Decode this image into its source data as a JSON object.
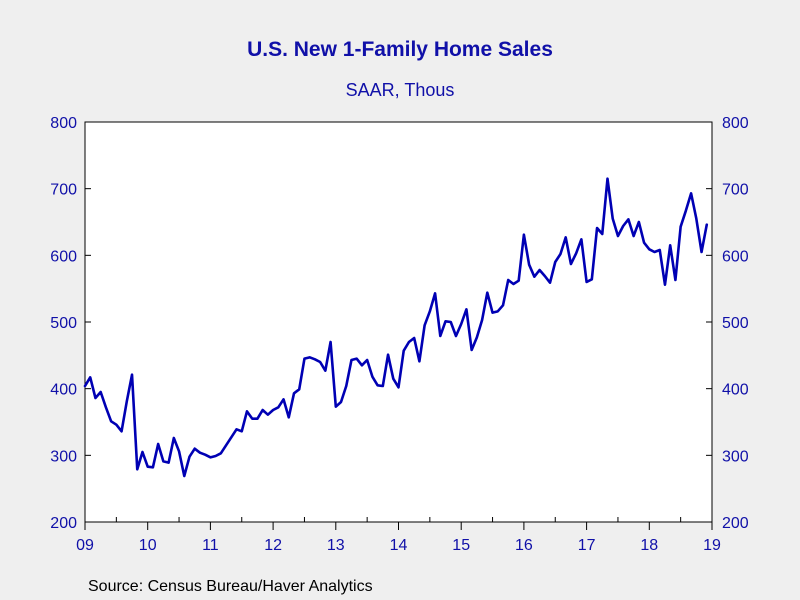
{
  "chart_data": {
    "type": "line",
    "title": "U.S. New 1-Family Home Sales",
    "subtitle": "SAAR, Thous",
    "source": "Source:  Census Bureau/Haver Analytics",
    "xlabel": "",
    "ylabel": "",
    "ylim": [
      200,
      800
    ],
    "yticks": [
      200,
      300,
      400,
      500,
      600,
      700,
      800
    ],
    "xlim": [
      2009.0,
      2019.0
    ],
    "xticks": [
      {
        "x": 2009,
        "label": "09"
      },
      {
        "x": 2010,
        "label": "10"
      },
      {
        "x": 2011,
        "label": "11"
      },
      {
        "x": 2012,
        "label": "12"
      },
      {
        "x": 2013,
        "label": "13"
      },
      {
        "x": 2014,
        "label": "14"
      },
      {
        "x": 2015,
        "label": "15"
      },
      {
        "x": 2016,
        "label": "16"
      },
      {
        "x": 2017,
        "label": "17"
      },
      {
        "x": 2018,
        "label": "18"
      },
      {
        "x": 2019,
        "label": "19"
      }
    ],
    "dual_y_axis": true,
    "grid": false,
    "line_color": "#0000b4",
    "series": [
      {
        "x_start": 2009.0,
        "x_step": 0.0833333,
        "values": [
          404,
          417,
          386,
          395,
          372,
          351,
          346,
          336,
          381,
          421,
          279,
          305,
          283,
          282,
          317,
          291,
          289,
          326,
          306,
          269,
          298,
          310,
          304,
          301,
          297,
          299,
          303,
          315,
          327,
          339,
          336,
          366,
          355,
          355,
          368,
          361,
          368,
          372,
          384,
          357,
          393,
          399,
          445,
          447,
          444,
          440,
          427,
          470,
          373,
          380,
          404,
          443,
          445,
          435,
          443,
          418,
          405,
          404,
          451,
          415,
          402,
          457,
          470,
          476,
          441,
          495,
          516,
          543,
          479,
          501,
          500,
          479,
          497,
          519,
          458,
          477,
          503,
          544,
          514,
          516,
          525,
          563,
          557,
          562,
          631,
          586,
          568,
          578,
          569,
          559,
          590,
          602,
          627,
          587,
          603,
          624,
          560,
          564,
          641,
          632,
          715,
          655,
          629,
          644,
          654,
          629,
          650,
          619,
          609,
          605,
          608,
          556,
          615,
          563,
          643,
          667,
          693,
          655,
          605,
          646
        ]
      }
    ]
  }
}
